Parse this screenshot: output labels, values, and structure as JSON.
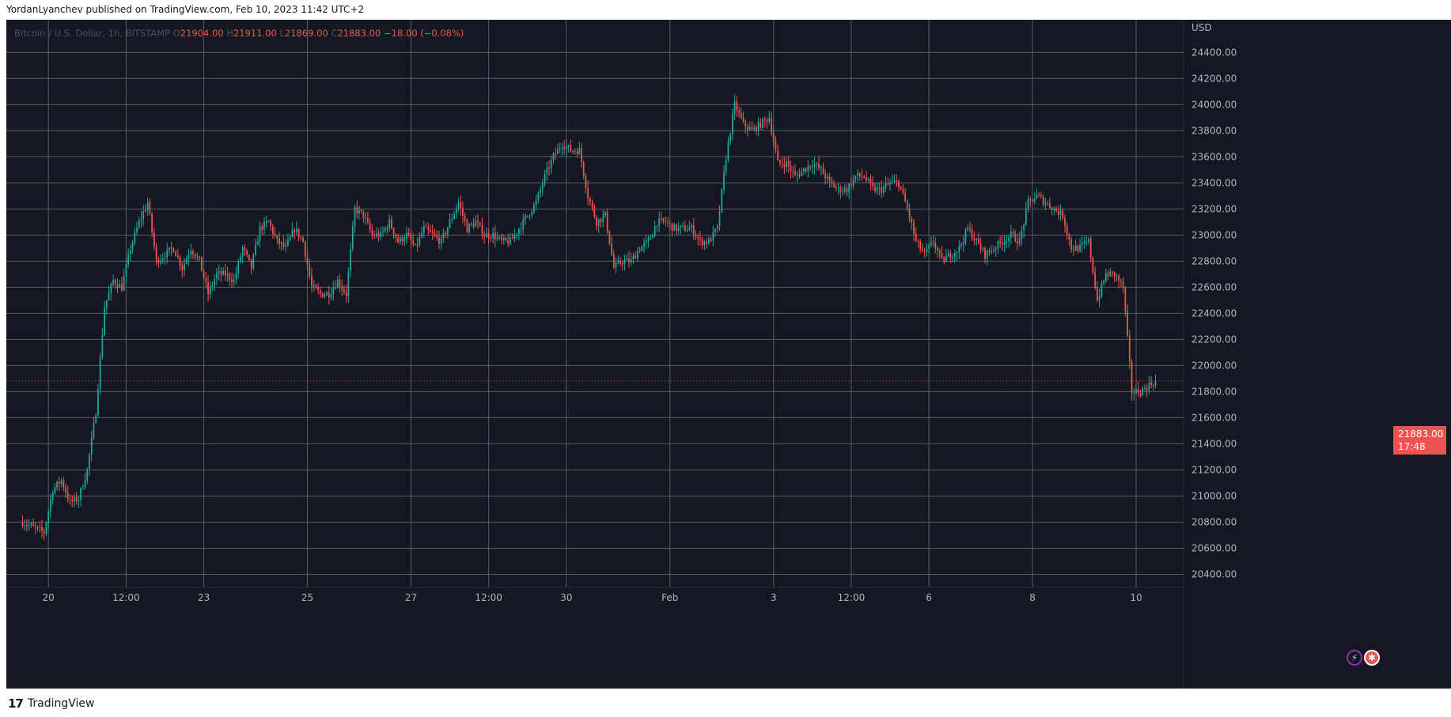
{
  "header": {
    "text": "YordanLyanchev published on TradingView.com, Feb 10, 2023 11:42 UTC+2"
  },
  "legend": {
    "symbol": "Bitcoin / U.S. Dollar, 1h, BITSTAMP",
    "o_label": "O",
    "o_value": "21904.00",
    "h_label": "H",
    "h_value": "21911.00",
    "l_label": "L",
    "l_value": "21869.00",
    "c_label": "C",
    "c_value": "21883.00",
    "change": "−18.00 (−0.08%)"
  },
  "price_badge": {
    "price": "21883.00",
    "countdown": "17:48"
  },
  "footer": {
    "brand": "TradingView",
    "logo_glyph": "17"
  },
  "colors": {
    "background": "#141823",
    "grid": "#5a5d66",
    "up": "#26a69a",
    "down": "#ef5350",
    "axis_text": "#b2b5be"
  },
  "icons": [
    "bolt-icon",
    "us-flag-icon"
  ],
  "chart_data": {
    "type": "candlestick",
    "symbol": "Bitcoin / U.S. Dollar",
    "interval": "1h",
    "exchange": "BITSTAMP",
    "y_unit": "USD",
    "ylim": [
      20300,
      24650
    ],
    "y_ticks": [
      20400,
      20600,
      20800,
      21000,
      21200,
      21400,
      21600,
      21800,
      22000,
      22200,
      22400,
      22600,
      22800,
      23000,
      23200,
      23400,
      23600,
      23800,
      24000,
      24200,
      24400
    ],
    "y_tick_labels": [
      "20400.00",
      "20600.00",
      "20800.00",
      "21000.00",
      "21200.00",
      "21400.00",
      "21600.00",
      "21800.00",
      "22000.00",
      "22200.00",
      "22400.00",
      "22600.00",
      "22800.00",
      "23000.00",
      "23200.00",
      "23400.00",
      "23600.00",
      "23800.00",
      "24000.00",
      "24200.00",
      "24400.00"
    ],
    "x_ticks": [
      {
        "hour": 12,
        "label": "20"
      },
      {
        "hour": 48,
        "label": "12:00"
      },
      {
        "hour": 84,
        "label": "23"
      },
      {
        "hour": 132,
        "label": "25"
      },
      {
        "hour": 180,
        "label": "27"
      },
      {
        "hour": 216,
        "label": "12:00"
      },
      {
        "hour": 252,
        "label": "30"
      },
      {
        "hour": 300,
        "label": "Feb"
      },
      {
        "hour": 348,
        "label": "3"
      },
      {
        "hour": 384,
        "label": "12:00"
      },
      {
        "hour": 420,
        "label": "6"
      },
      {
        "hour": 468,
        "label": "8"
      },
      {
        "hour": 516,
        "label": "10"
      }
    ],
    "x_hour_span": [
      -7.5,
      538
    ],
    "last_price": 21883,
    "price_path": [
      [
        0,
        20800
      ],
      [
        5,
        20760
      ],
      [
        10,
        20720
      ],
      [
        14,
        21050
      ],
      [
        18,
        21120
      ],
      [
        22,
        20950
      ],
      [
        26,
        20980
      ],
      [
        30,
        21200
      ],
      [
        34,
        21650
      ],
      [
        38,
        22450
      ],
      [
        42,
        22650
      ],
      [
        46,
        22600
      ],
      [
        50,
        22900
      ],
      [
        54,
        23100
      ],
      [
        58,
        23250
      ],
      [
        62,
        22800
      ],
      [
        66,
        22850
      ],
      [
        70,
        22900
      ],
      [
        74,
        22750
      ],
      [
        78,
        22900
      ],
      [
        82,
        22800
      ],
      [
        86,
        22550
      ],
      [
        90,
        22700
      ],
      [
        94,
        22700
      ],
      [
        98,
        22650
      ],
      [
        102,
        22900
      ],
      [
        106,
        22750
      ],
      [
        110,
        23050
      ],
      [
        114,
        23100
      ],
      [
        118,
        22950
      ],
      [
        122,
        22900
      ],
      [
        126,
        23050
      ],
      [
        130,
        22950
      ],
      [
        134,
        22600
      ],
      [
        138,
        22550
      ],
      [
        142,
        22550
      ],
      [
        146,
        22650
      ],
      [
        150,
        22550
      ],
      [
        154,
        23200
      ],
      [
        158,
        23150
      ],
      [
        162,
        23000
      ],
      [
        166,
        23000
      ],
      [
        170,
        23100
      ],
      [
        174,
        22950
      ],
      [
        178,
        23000
      ],
      [
        182,
        22900
      ],
      [
        186,
        23050
      ],
      [
        190,
        23000
      ],
      [
        194,
        22950
      ],
      [
        198,
        23100
      ],
      [
        202,
        23250
      ],
      [
        206,
        23050
      ],
      [
        210,
        23100
      ],
      [
        214,
        23000
      ],
      [
        218,
        23000
      ],
      [
        222,
        22950
      ],
      [
        226,
        22950
      ],
      [
        230,
        23050
      ],
      [
        234,
        23150
      ],
      [
        238,
        23250
      ],
      [
        242,
        23450
      ],
      [
        246,
        23600
      ],
      [
        250,
        23700
      ],
      [
        254,
        23650
      ],
      [
        258,
        23650
      ],
      [
        262,
        23300
      ],
      [
        266,
        23100
      ],
      [
        270,
        23150
      ],
      [
        274,
        22750
      ],
      [
        278,
        22800
      ],
      [
        282,
        22800
      ],
      [
        286,
        22900
      ],
      [
        290,
        22950
      ],
      [
        294,
        23100
      ],
      [
        298,
        23100
      ],
      [
        302,
        23050
      ],
      [
        306,
        23050
      ],
      [
        310,
        23050
      ],
      [
        314,
        22950
      ],
      [
        318,
        22950
      ],
      [
        322,
        23050
      ],
      [
        326,
        23600
      ],
      [
        330,
        24000
      ],
      [
        334,
        23850
      ],
      [
        338,
        23800
      ],
      [
        342,
        23850
      ],
      [
        346,
        23900
      ],
      [
        350,
        23550
      ],
      [
        354,
        23550
      ],
      [
        358,
        23450
      ],
      [
        362,
        23500
      ],
      [
        366,
        23550
      ],
      [
        370,
        23500
      ],
      [
        374,
        23400
      ],
      [
        378,
        23350
      ],
      [
        382,
        23350
      ],
      [
        386,
        23450
      ],
      [
        390,
        23450
      ],
      [
        394,
        23350
      ],
      [
        398,
        23350
      ],
      [
        402,
        23400
      ],
      [
        406,
        23400
      ],
      [
        410,
        23200
      ],
      [
        414,
        22950
      ],
      [
        418,
        22850
      ],
      [
        422,
        22950
      ],
      [
        426,
        22800
      ],
      [
        430,
        22850
      ],
      [
        434,
        22900
      ],
      [
        438,
        23050
      ],
      [
        442,
        22950
      ],
      [
        446,
        22850
      ],
      [
        450,
        22900
      ],
      [
        454,
        22950
      ],
      [
        458,
        23000
      ],
      [
        462,
        22950
      ],
      [
        466,
        23250
      ],
      [
        470,
        23300
      ],
      [
        474,
        23250
      ],
      [
        478,
        23200
      ],
      [
        482,
        23150
      ],
      [
        486,
        22900
      ],
      [
        490,
        22900
      ],
      [
        494,
        22950
      ],
      [
        498,
        22500
      ],
      [
        502,
        22700
      ],
      [
        506,
        22700
      ],
      [
        510,
        22600
      ],
      [
        514,
        21800
      ],
      [
        518,
        21800
      ],
      [
        522,
        21850
      ],
      [
        525,
        21883
      ]
    ]
  }
}
